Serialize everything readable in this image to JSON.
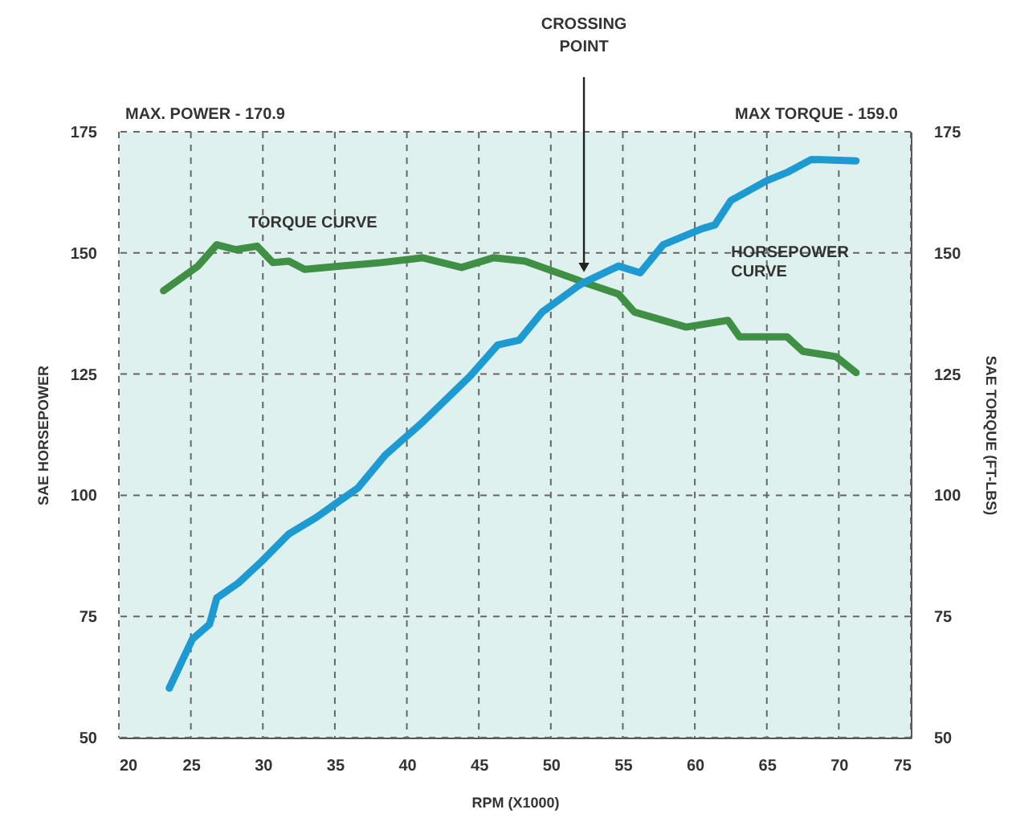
{
  "chart_data": {
    "type": "line",
    "xlabel": "RPM (X1000)",
    "ylabel": "SAE HORSEPOWER",
    "y2label": "SAE TORQUE (FT-LBS)",
    "xlim": [
      20,
      75
    ],
    "xticks": [
      20,
      25,
      30,
      35,
      40,
      45,
      50,
      55,
      60,
      65,
      70,
      75
    ],
    "ylim": [
      50,
      175
    ],
    "yticks": [
      50,
      75,
      100,
      125,
      150,
      175
    ],
    "y2lim": [
      50,
      175
    ],
    "y2ticks": [
      50,
      75,
      100,
      125,
      150,
      175
    ],
    "grid": true,
    "marker": "none",
    "line_style": "solid",
    "annotations": [
      "MAX. POWER - 170.9",
      "MAX TORQUE - 159.0",
      {
        "text": "CROSSING POINT",
        "x": 52.3,
        "y": 147
      }
    ],
    "series": [
      {
        "name": "TORQUE CURVE",
        "color": "#3f8f45",
        "axis": "y2",
        "x": [
          23.1,
          25.5,
          26.8,
          28.1,
          29.6,
          30.7,
          31.8,
          32.9,
          35.5,
          38.2,
          41.1,
          43.8,
          46,
          48.2,
          51.7,
          52.3,
          54.7,
          55.8,
          59.4,
          62.3,
          63.1,
          66.4,
          67.5,
          69.8,
          71.2
        ],
        "values": [
          142.2,
          147.3,
          151.7,
          150.7,
          151.4,
          148,
          148.3,
          146.6,
          147.3,
          148,
          149,
          147,
          149,
          148.3,
          144.6,
          143.9,
          141.5,
          137.8,
          134.7,
          136.1,
          132.7,
          132.7,
          129.7,
          128.6,
          125.3
        ]
      },
      {
        "name": "HORSEPOWER CURVE",
        "color": "#1e9ad3",
        "x": [
          23.5,
          25.1,
          26.3,
          26.8,
          28.3,
          29.9,
          31.8,
          33.7,
          35.5,
          36.6,
          38.5,
          41.1,
          44.4,
          46.3,
          47.8,
          49.4,
          51.9,
          52.3,
          54.7,
          56.2,
          57.8,
          60.5,
          61.4,
          62.5,
          65,
          66.4,
          68.1,
          71.2
        ],
        "values": [
          60.2,
          70.3,
          73.4,
          78.8,
          81.9,
          86.3,
          92,
          95.4,
          99.2,
          101.5,
          108.3,
          115.1,
          124.6,
          131,
          132,
          137.8,
          143.2,
          143.9,
          147.3,
          145.9,
          151.7,
          155,
          155.8,
          160.8,
          164.9,
          166.6,
          169.3,
          169
        ]
      }
    ]
  }
}
